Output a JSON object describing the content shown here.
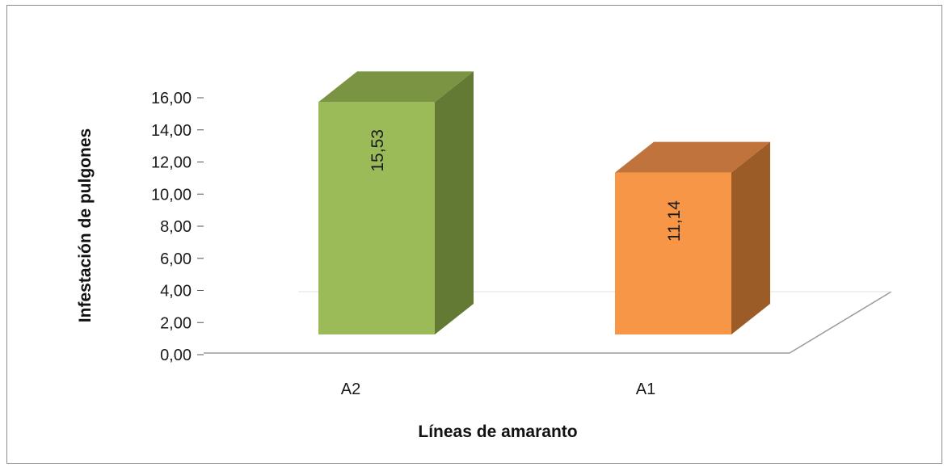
{
  "chart_data": {
    "type": "bar",
    "title": "",
    "xlabel": "Líneas de amaranto",
    "ylabel": "Infestación de pulgones",
    "categories": [
      "A2",
      "A1"
    ],
    "values": [
      15.53,
      11.14
    ],
    "value_labels": [
      "15,53",
      "11,14"
    ],
    "y_ticks": [
      "0,00",
      "2,00",
      "4,00",
      "6,00",
      "8,00",
      "10,00",
      "12,00",
      "14,00",
      "16,00"
    ],
    "ylim": [
      0,
      16
    ],
    "grid": false,
    "legend": "none",
    "style": "3d-column",
    "colors": {
      "A2": {
        "front": "#9bbb59",
        "side": "#637a35",
        "top": "#7a9444"
      },
      "A1": {
        "front": "#f79646",
        "side": "#9c5c27",
        "top": "#c0733a"
      },
      "floor_line": "#9a9a9a",
      "frame": "#8c8c8c"
    }
  }
}
